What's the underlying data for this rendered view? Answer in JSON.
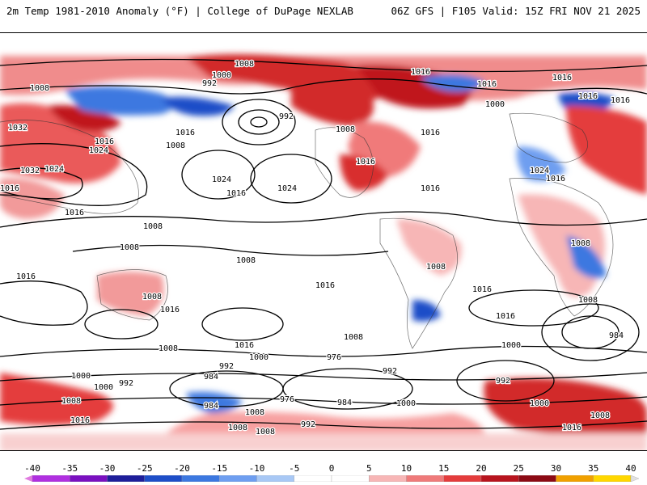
{
  "header": {
    "title_left": "2m Temp 1981-2010 Anomaly (°F) | College of DuPage NEXLAB",
    "title_right": "06Z GFS | F105 Valid: 15Z FRI NOV 21 2025"
  },
  "map": {
    "contour_labels": [
      "1008",
      "1000",
      "992",
      "1016",
      "1008",
      "992",
      "1016",
      "1016",
      "1000",
      "1016",
      "1016",
      "1032",
      "1024",
      "1016",
      "1016",
      "1008",
      "1016",
      "1032",
      "1024",
      "1008",
      "1016",
      "1024",
      "1024",
      "1016",
      "1016",
      "1016",
      "1016",
      "1024",
      "1016",
      "1008",
      "1008",
      "1008",
      "1008",
      "1016",
      "1016",
      "1016",
      "1008",
      "1008",
      "1016",
      "1016",
      "1016",
      "1000",
      "1008",
      "1008",
      "984",
      "1008",
      "1000",
      "992",
      "976",
      "992",
      "1000",
      "984",
      "992",
      "1000",
      "1008",
      "992",
      "984",
      "976",
      "984",
      "1008",
      "1000",
      "1000",
      "1016",
      "1008",
      "1008",
      "992",
      "1008",
      "1016"
    ]
  },
  "legend": {
    "ticks": [
      "-40",
      "-35",
      "-30",
      "-25",
      "-20",
      "-15",
      "-10",
      "-5",
      "0",
      "5",
      "10",
      "15",
      "20",
      "25",
      "30",
      "35",
      "40"
    ],
    "colors": [
      "#e07be0",
      "#b030e0",
      "#7a10c0",
      "#1e1e9a",
      "#1e4ec8",
      "#3c78e0",
      "#6e9ef0",
      "#a8c8f5",
      "#ffffff",
      "#ffffff",
      "#f7b6b6",
      "#ef7a7a",
      "#e43c3c",
      "#b8141e",
      "#8c0a14",
      "#f0a000",
      "#ffd700"
    ]
  }
}
